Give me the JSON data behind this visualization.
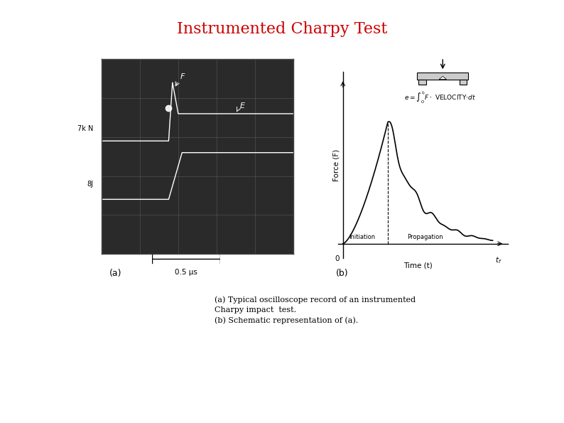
{
  "title": "Instrumented Charpy Test",
  "title_color": "#cc0000",
  "title_fontsize": 16,
  "bg_color": "#ffffff",
  "caption_lines": [
    "(a) Typical oscilloscope record of an instrumented",
    "Charpy impact  test.",
    "(b) Schematic representation of (a)."
  ],
  "caption_fontsize": 8,
  "label_a": "(a)",
  "label_b": "(b)",
  "oscillo_label_7kN": "7k N",
  "oscillo_label_8J": "8J",
  "oscillo_timescale": "0.5 μs",
  "chart_ylabel": "Force (F)",
  "chart_xlabel": "Time (t)",
  "chart_label_initiation": "Initiation",
  "chart_label_propagation": "Propagation"
}
